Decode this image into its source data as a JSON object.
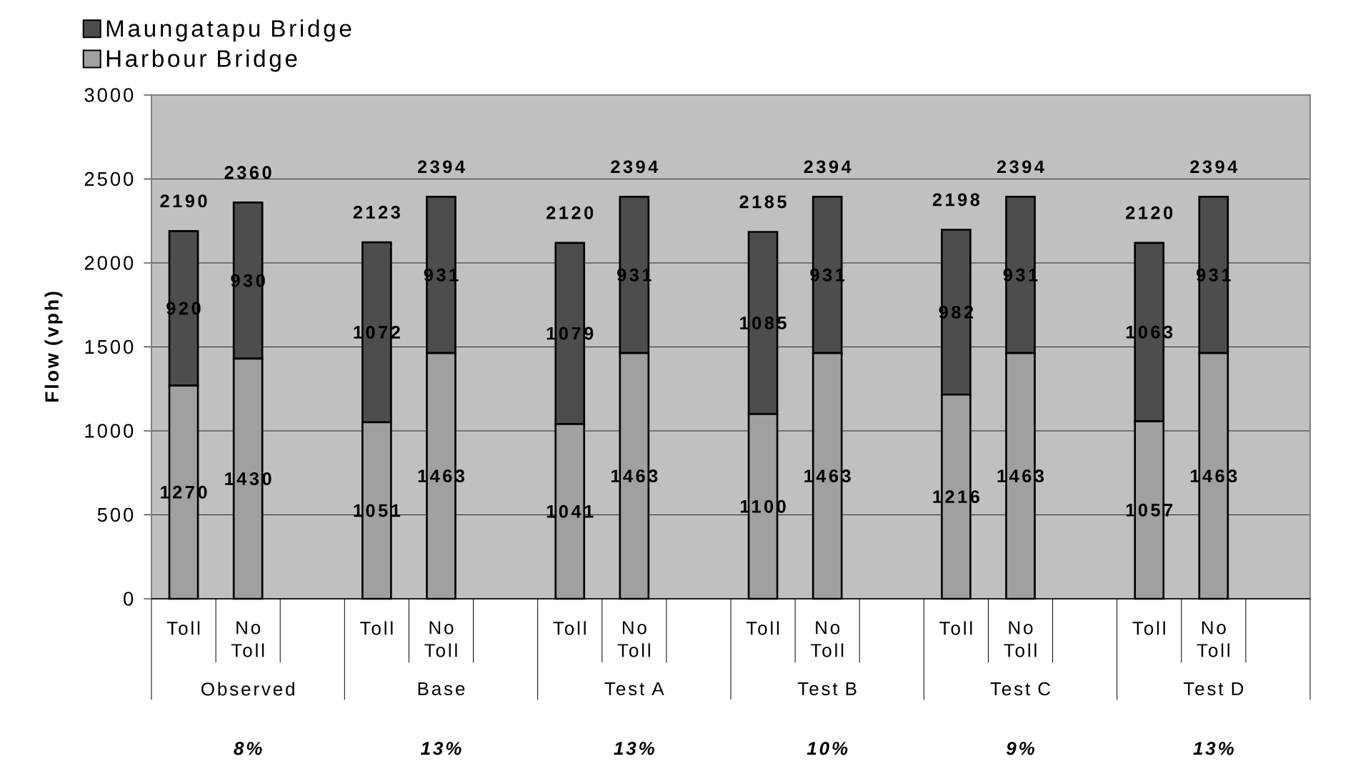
{
  "chart_data": {
    "type": "bar",
    "stacked": true,
    "categories": [
      "Toll",
      "No Toll",
      null,
      "Toll",
      "No Toll",
      null,
      "Toll",
      "No Toll",
      null,
      "Toll",
      "No Toll",
      null,
      "Toll",
      "No Toll",
      null,
      "Toll",
      "No Toll",
      null
    ],
    "series": [
      {
        "name": "Harbour Bridge",
        "color": "#a0a0a0",
        "values": [
          1270,
          1430,
          null,
          1051,
          1463,
          null,
          1041,
          1463,
          null,
          1100,
          1463,
          null,
          1216,
          1463,
          null,
          1057,
          1463,
          null
        ]
      },
      {
        "name": "Maungatapu Bridge",
        "color": "#4d4d4d",
        "values": [
          920,
          930,
          null,
          1072,
          931,
          null,
          1079,
          931,
          null,
          1085,
          931,
          null,
          982,
          931,
          null,
          1063,
          931,
          null
        ]
      }
    ],
    "totals": [
      "2190",
      "2360",
      null,
      "2123",
      "2394",
      null,
      "2120",
      "2394",
      null,
      "2185",
      "2394",
      null,
      "2198",
      "2394",
      null,
      "2120",
      "2394",
      null
    ],
    "ylabel": "Flow (vph)",
    "ylim": [
      0,
      3000
    ],
    "yticks": [
      0,
      500,
      1000,
      1500,
      2000,
      2500,
      3000
    ],
    "grid": "y",
    "legend": "top left",
    "data_labels": true,
    "annotations": [
      "Observed",
      "Base",
      "Test A",
      "Test B",
      "Test C",
      "Test D",
      "8%",
      "13%",
      "13%",
      "10%",
      "9%",
      "13%"
    ]
  }
}
